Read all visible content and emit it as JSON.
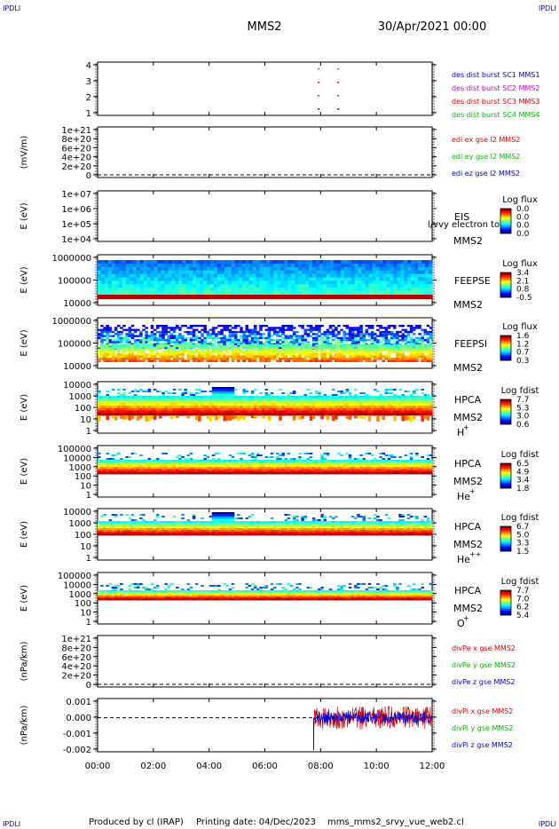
{
  "corner_label": "IPDLI",
  "header": {
    "spacecraft": "MMS2",
    "datetime": "30/Apr/2021 00:00"
  },
  "footer": {
    "produced_by": "Produced by cl (IRAP)",
    "printing_date": "Printing date: 04/Dec/2023",
    "filename": "mms_mms2_srvy_vue_web2.cl"
  },
  "colors": {
    "mms1": "#0000cc",
    "mms2": "#cc00cc",
    "mms3": "#dd0000",
    "mms4": "#00bb00",
    "x": "#dd0000",
    "y": "#00bb00",
    "z": "#0000cc"
  },
  "chart_data": {
    "type": "heatmap",
    "x_ticks": [
      "00:00",
      "02:00",
      "04:00",
      "06:00",
      "08:00",
      "10:00",
      "12:00"
    ],
    "xlim_hours": [
      0,
      12
    ],
    "panels": [
      {
        "id": "burst",
        "type": "scatter",
        "y_ticks": [
          "4",
          "3",
          "2",
          "1"
        ],
        "ylim": [
          0.5,
          4.5
        ],
        "legend": [
          {
            "label": "des dist burst SC1 MMS1",
            "color": "#0000cc"
          },
          {
            "label": "des dist burst SC2 MMS2",
            "color": "#cc00cc"
          },
          {
            "label": "des dist burst SC3 MMS3",
            "color": "#dd0000"
          },
          {
            "label": "des dist burst SC4 MMS4",
            "color": "#00bb00"
          }
        ],
        "points": [
          {
            "t": 7.9,
            "sc": 4
          },
          {
            "t": 8.6,
            "sc": 4
          },
          {
            "t": 7.9,
            "sc": 3
          },
          {
            "t": 8.6,
            "sc": 3
          },
          {
            "t": 7.9,
            "sc": 2
          },
          {
            "t": 8.6,
            "sc": 2
          },
          {
            "t": 7.9,
            "sc": 1
          },
          {
            "t": 8.6,
            "sc": 1
          }
        ]
      },
      {
        "id": "edi",
        "type": "line",
        "ylabel": "(mV/m)",
        "y_ticks": [
          "1e+21",
          "8e+20",
          "6e+20",
          "4e+20",
          "2e+20",
          "0"
        ],
        "ylim": [
          0,
          1e+21
        ],
        "legend": [
          {
            "label": "edi ex gse l2 MMS2",
            "color": "#dd0000"
          },
          {
            "label": "edi ey gse l2 MMS2",
            "color": "#00bb00"
          },
          {
            "label": "edi ez gse l2 MMS2",
            "color": "#0000cc"
          }
        ]
      },
      {
        "id": "eis",
        "type": "heatmap",
        "ylabel": "E (eV)",
        "y_ticks": [
          "1e+07",
          "1e+06",
          "1e+05",
          "1e+04"
        ],
        "ylim": [
          10000,
          10000000
        ],
        "instrument": "EIS",
        "subtitle": "l/vvy electron to",
        "spacecraft": "MMS2",
        "colorbar_title": "Log flux",
        "colorbar_ticks": [
          "0.0",
          "0.0",
          "0.0",
          "0.0"
        ]
      },
      {
        "id": "feepse",
        "type": "heatmap",
        "ylabel": "E (eV)",
        "y_ticks": [
          "1000000",
          "100000",
          "10000"
        ],
        "ylim": [
          10000,
          1000000
        ],
        "instrument": "FEEPSE",
        "spacecraft": "MMS2",
        "colorbar_title": "Log flux",
        "colorbar_ticks": [
          "3.4",
          "2.1",
          "0.8",
          "-0.5"
        ]
      },
      {
        "id": "feepsi",
        "type": "heatmap",
        "ylabel": "E (eV)",
        "y_ticks": [
          "1000000",
          "100000",
          "10000"
        ],
        "ylim": [
          10000,
          1000000
        ],
        "instrument": "FEEPSI",
        "spacecraft": "MMS2",
        "colorbar_title": "Log flux",
        "colorbar_ticks": [
          "1.6",
          "1.2",
          "0.7",
          "0.3"
        ]
      },
      {
        "id": "hpca_h",
        "type": "heatmap",
        "ylabel": "E (eV)",
        "y_ticks": [
          "10000",
          "1000",
          "100",
          "10",
          "1"
        ],
        "ylim": [
          1,
          30000
        ],
        "instrument": "HPCA",
        "spacecraft": "MMS2",
        "species": "H",
        "species_sup": "+",
        "colorbar_title": "Log fdist",
        "colorbar_ticks": [
          "7.7",
          "5.3",
          "3.0",
          "0.6"
        ]
      },
      {
        "id": "hpca_he",
        "type": "heatmap",
        "ylabel": "E (eV)",
        "y_ticks": [
          "100000",
          "10000",
          "1000",
          "100",
          "10",
          "1"
        ],
        "ylim": [
          1,
          100000
        ],
        "instrument": "HPCA",
        "spacecraft": "MMS2",
        "species": "He",
        "species_sup": "+",
        "colorbar_title": "Log fdist",
        "colorbar_ticks": [
          "6.5",
          "4.9",
          "3.4",
          "1.8"
        ]
      },
      {
        "id": "hpca_hepp",
        "type": "heatmap",
        "ylabel": "E (eV)",
        "y_ticks": [
          "10000",
          "1000",
          "100",
          "10",
          "1"
        ],
        "ylim": [
          1,
          10000
        ],
        "instrument": "HPCA",
        "spacecraft": "MMS2",
        "species": "He",
        "species_sup": "++",
        "colorbar_title": "Log fdist",
        "colorbar_ticks": [
          "6.7",
          "5.0",
          "3.3",
          "1.5"
        ]
      },
      {
        "id": "hpca_o",
        "type": "heatmap",
        "ylabel": "E (eV)",
        "y_ticks": [
          "100000",
          "10000",
          "1000",
          "100",
          "10",
          "1"
        ],
        "ylim": [
          1,
          100000
        ],
        "instrument": "HPCA",
        "spacecraft": "MMS2",
        "species": "O",
        "species_sup": "+",
        "colorbar_title": "Log fdist",
        "colorbar_ticks": [
          "7.7",
          "7.0",
          "6.2",
          "5.4"
        ]
      },
      {
        "id": "divpe",
        "type": "line",
        "ylabel": "(nPa/km)",
        "y_ticks": [
          "1e+21",
          "8e+20",
          "6e+20",
          "4e+20",
          "2e+20",
          "0"
        ],
        "ylim": [
          0,
          1e+21
        ],
        "legend": [
          {
            "label": "divPe x gse MMS2",
            "color": "#dd0000"
          },
          {
            "label": "divPe y gse MMS2",
            "color": "#00bb00"
          },
          {
            "label": "divPe z gse MMS2",
            "color": "#0000cc"
          }
        ]
      },
      {
        "id": "divpi",
        "type": "line",
        "ylabel": "(nPa/km)",
        "y_ticks": [
          "0.001",
          "0.000",
          "-0.001",
          "-0.002"
        ],
        "ylim": [
          -0.0023,
          0.0013
        ],
        "legend": [
          {
            "label": "divPi x gse MMS2",
            "color": "#dd0000"
          },
          {
            "label": "divPi y gse MMS2",
            "color": "#00bb00"
          },
          {
            "label": "divPi z gse MMS2",
            "color": "#0000cc"
          }
        ],
        "data_start_hours": 7.75,
        "series": [
          {
            "name": "divPi x gse MMS2",
            "center": 0.0,
            "amplitude": 0.0008
          },
          {
            "name": "divPi z gse MMS2",
            "center": 0.0,
            "amplitude": 0.0004
          }
        ],
        "spike_min": -0.0022
      }
    ]
  }
}
